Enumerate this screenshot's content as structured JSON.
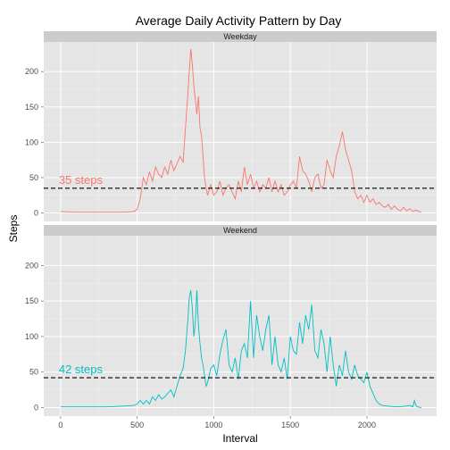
{
  "chart_data": {
    "type": "line",
    "title": "Average Daily Activity Pattern by Day",
    "xlabel": "Interval",
    "ylabel": "Steps",
    "xlim": [
      -110,
      2455
    ],
    "ylim": [
      -12,
      242
    ],
    "x_ticks": [
      0,
      500,
      1000,
      1500,
      2000
    ],
    "y_ticks": [
      0,
      50,
      100,
      150,
      200
    ],
    "grid": true,
    "panels": [
      {
        "name": "Weekday",
        "color": "#F8766D",
        "mean": 35,
        "mean_label": "35 steps",
        "series": [
          {
            "name": "Weekday",
            "points": [
              [
                0,
                2
              ],
              [
                100,
                1
              ],
              [
                200,
                1
              ],
              [
                300,
                1
              ],
              [
                400,
                1
              ],
              [
                480,
                2
              ],
              [
                500,
                5
              ],
              [
                520,
                20
              ],
              [
                540,
                50
              ],
              [
                560,
                40
              ],
              [
                580,
                58
              ],
              [
                600,
                45
              ],
              [
                620,
                65
              ],
              [
                640,
                55
              ],
              [
                660,
                50
              ],
              [
                680,
                65
              ],
              [
                700,
                55
              ],
              [
                720,
                75
              ],
              [
                740,
                60
              ],
              [
                760,
                70
              ],
              [
                780,
                80
              ],
              [
                800,
                72
              ],
              [
                815,
                120
              ],
              [
                830,
                165
              ],
              [
                840,
                200
              ],
              [
                850,
                232
              ],
              [
                860,
                210
              ],
              [
                870,
                180
              ],
              [
                880,
                160
              ],
              [
                890,
                140
              ],
              [
                900,
                165
              ],
              [
                910,
                120
              ],
              [
                920,
                110
              ],
              [
                930,
                80
              ],
              [
                940,
                50
              ],
              [
                950,
                35
              ],
              [
                960,
                25
              ],
              [
                980,
                40
              ],
              [
                1000,
                25
              ],
              [
                1020,
                30
              ],
              [
                1040,
                45
              ],
              [
                1060,
                25
              ],
              [
                1080,
                35
              ],
              [
                1100,
                40
              ],
              [
                1120,
                30
              ],
              [
                1140,
                20
              ],
              [
                1160,
                45
              ],
              [
                1180,
                30
              ],
              [
                1200,
                65
              ],
              [
                1220,
                40
              ],
              [
                1240,
                55
              ],
              [
                1260,
                35
              ],
              [
                1280,
                45
              ],
              [
                1300,
                30
              ],
              [
                1320,
                40
              ],
              [
                1340,
                35
              ],
              [
                1360,
                50
              ],
              [
                1380,
                30
              ],
              [
                1400,
                45
              ],
              [
                1420,
                30
              ],
              [
                1440,
                40
              ],
              [
                1460,
                25
              ],
              [
                1480,
                30
              ],
              [
                1500,
                40
              ],
              [
                1520,
                45
              ],
              [
                1540,
                35
              ],
              [
                1560,
                80
              ],
              [
                1580,
                60
              ],
              [
                1600,
                55
              ],
              [
                1620,
                45
              ],
              [
                1640,
                30
              ],
              [
                1660,
                50
              ],
              [
                1680,
                55
              ],
              [
                1700,
                35
              ],
              [
                1720,
                40
              ],
              [
                1740,
                75
              ],
              [
                1760,
                60
              ],
              [
                1780,
                50
              ],
              [
                1800,
                80
              ],
              [
                1820,
                95
              ],
              [
                1840,
                115
              ],
              [
                1860,
                90
              ],
              [
                1880,
                75
              ],
              [
                1900,
                60
              ],
              [
                1920,
                30
              ],
              [
                1940,
                20
              ],
              [
                1960,
                25
              ],
              [
                1980,
                15
              ],
              [
                2000,
                25
              ],
              [
                2020,
                15
              ],
              [
                2040,
                20
              ],
              [
                2060,
                12
              ],
              [
                2080,
                15
              ],
              [
                2100,
                10
              ],
              [
                2120,
                8
              ],
              [
                2140,
                12
              ],
              [
                2160,
                5
              ],
              [
                2180,
                10
              ],
              [
                2200,
                5
              ],
              [
                2220,
                3
              ],
              [
                2240,
                8
              ],
              [
                2260,
                3
              ],
              [
                2280,
                6
              ],
              [
                2300,
                2
              ],
              [
                2320,
                4
              ],
              [
                2340,
                2
              ],
              [
                2355,
                1
              ]
            ]
          }
        ]
      },
      {
        "name": "Weekend",
        "color": "#00BFC4",
        "mean": 42,
        "mean_label": "42 steps",
        "series": [
          {
            "name": "Weekend",
            "points": [
              [
                0,
                1
              ],
              [
                100,
                1
              ],
              [
                200,
                1
              ],
              [
                300,
                1
              ],
              [
                400,
                2
              ],
              [
                480,
                3
              ],
              [
                500,
                5
              ],
              [
                520,
                10
              ],
              [
                540,
                5
              ],
              [
                560,
                10
              ],
              [
                580,
                5
              ],
              [
                600,
                15
              ],
              [
                620,
                10
              ],
              [
                640,
                18
              ],
              [
                660,
                12
              ],
              [
                680,
                15
              ],
              [
                700,
                20
              ],
              [
                720,
                25
              ],
              [
                740,
                15
              ],
              [
                760,
                30
              ],
              [
                780,
                45
              ],
              [
                800,
                55
              ],
              [
                815,
                80
              ],
              [
                830,
                120
              ],
              [
                840,
                155
              ],
              [
                850,
                165
              ],
              [
                860,
                140
              ],
              [
                870,
                100
              ],
              [
                880,
                120
              ],
              [
                890,
                165
              ],
              [
                900,
                115
              ],
              [
                910,
                90
              ],
              [
                920,
                70
              ],
              [
                930,
                60
              ],
              [
                940,
                45
              ],
              [
                950,
                30
              ],
              [
                960,
                35
              ],
              [
                980,
                55
              ],
              [
                1000,
                60
              ],
              [
                1020,
                45
              ],
              [
                1040,
                75
              ],
              [
                1060,
                95
              ],
              [
                1080,
                110
              ],
              [
                1100,
                60
              ],
              [
                1120,
                50
              ],
              [
                1140,
                70
              ],
              [
                1160,
                40
              ],
              [
                1180,
                80
              ],
              [
                1200,
                90
              ],
              [
                1220,
                70
              ],
              [
                1240,
                150
              ],
              [
                1260,
                70
              ],
              [
                1280,
                130
              ],
              [
                1300,
                100
              ],
              [
                1320,
                80
              ],
              [
                1340,
                110
              ],
              [
                1360,
                130
              ],
              [
                1380,
                60
              ],
              [
                1400,
                100
              ],
              [
                1420,
                60
              ],
              [
                1440,
                50
              ],
              [
                1460,
                70
              ],
              [
                1480,
                40
              ],
              [
                1500,
                100
              ],
              [
                1520,
                80
              ],
              [
                1540,
                75
              ],
              [
                1560,
                120
              ],
              [
                1580,
                90
              ],
              [
                1600,
                130
              ],
              [
                1620,
                110
              ],
              [
                1640,
                145
              ],
              [
                1660,
                80
              ],
              [
                1680,
                70
              ],
              [
                1700,
                110
              ],
              [
                1720,
                90
              ],
              [
                1740,
                50
              ],
              [
                1760,
                100
              ],
              [
                1780,
                60
              ],
              [
                1800,
                30
              ],
              [
                1820,
                60
              ],
              [
                1840,
                45
              ],
              [
                1860,
                80
              ],
              [
                1880,
                50
              ],
              [
                1900,
                40
              ],
              [
                1920,
                60
              ],
              [
                1940,
                45
              ],
              [
                1960,
                40
              ],
              [
                1980,
                35
              ],
              [
                2000,
                50
              ],
              [
                2020,
                30
              ],
              [
                2040,
                20
              ],
              [
                2060,
                10
              ],
              [
                2080,
                5
              ],
              [
                2100,
                3
              ],
              [
                2140,
                2
              ],
              [
                2200,
                1
              ],
              [
                2250,
                2
              ],
              [
                2280,
                3
              ],
              [
                2300,
                1
              ],
              [
                2310,
                10
              ],
              [
                2320,
                3
              ],
              [
                2330,
                1
              ],
              [
                2355,
                0
              ]
            ]
          }
        ]
      }
    ]
  }
}
